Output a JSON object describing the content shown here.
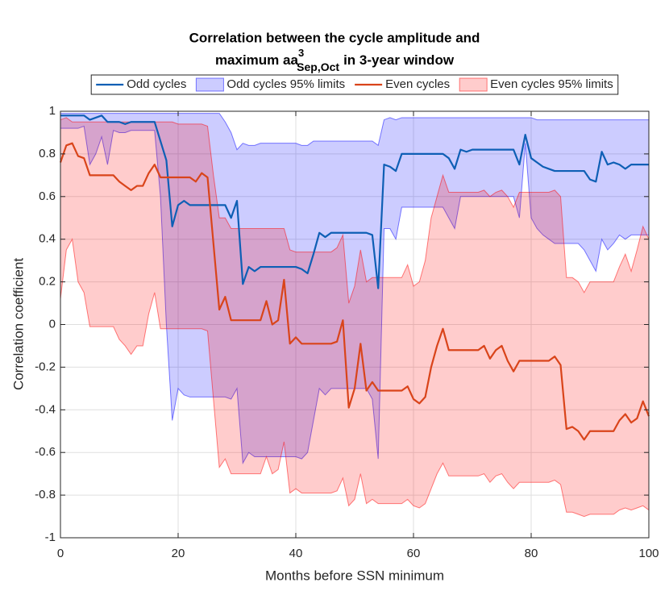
{
  "chart_data": {
    "type": "line",
    "title": [
      "Correlation between the cycle amplitude and",
      "maximum aa",
      "3",
      "Sep,Oct",
      "in 3-year window"
    ],
    "xlabel": "Months before SSN minimum",
    "ylabel": "Correlation coefficient",
    "xlim": [
      0,
      100
    ],
    "ylim": [
      -1,
      1
    ],
    "xticks": [
      0,
      20,
      40,
      60,
      80,
      100
    ],
    "yticks": [
      -1,
      -0.8,
      -0.6,
      -0.4,
      -0.2,
      0,
      0.2,
      0.4,
      0.6,
      0.8,
      1
    ],
    "grid": true,
    "legend": "north",
    "x": [
      0,
      1,
      2,
      3,
      4,
      5,
      6,
      7,
      8,
      9,
      10,
      11,
      12,
      13,
      14,
      15,
      16,
      17,
      18,
      19,
      20,
      21,
      22,
      23,
      24,
      25,
      26,
      27,
      28,
      29,
      30,
      31,
      32,
      33,
      34,
      35,
      36,
      37,
      38,
      39,
      40,
      41,
      42,
      43,
      44,
      45,
      46,
      47,
      48,
      49,
      50,
      51,
      52,
      53,
      54,
      55,
      56,
      57,
      58,
      59,
      60,
      61,
      62,
      63,
      64,
      65,
      66,
      67,
      68,
      69,
      70,
      71,
      72,
      73,
      74,
      75,
      76,
      77,
      78,
      79,
      80,
      81,
      82,
      83,
      84,
      85,
      86,
      87,
      88,
      89,
      90,
      91,
      92,
      93,
      94,
      95,
      96,
      97,
      98,
      99,
      100
    ],
    "series": [
      {
        "name": "Odd cycles",
        "color": "#0e5fb5",
        "values": [
          0.98,
          0.98,
          0.98,
          0.98,
          0.98,
          0.96,
          0.97,
          0.98,
          0.95,
          0.95,
          0.95,
          0.94,
          0.95,
          0.95,
          0.95,
          0.95,
          0.95,
          0.86,
          0.77,
          0.46,
          0.56,
          0.58,
          0.56,
          0.56,
          0.56,
          0.56,
          0.56,
          0.56,
          0.56,
          0.5,
          0.58,
          0.19,
          0.27,
          0.25,
          0.27,
          0.27,
          0.27,
          0.27,
          0.27,
          0.27,
          0.27,
          0.26,
          0.24,
          0.33,
          0.43,
          0.41,
          0.43,
          0.43,
          0.43,
          0.43,
          0.43,
          0.43,
          0.43,
          0.42,
          0.17,
          0.75,
          0.74,
          0.72,
          0.8,
          0.8,
          0.8,
          0.8,
          0.8,
          0.8,
          0.8,
          0.8,
          0.78,
          0.73,
          0.82,
          0.81,
          0.82,
          0.82,
          0.82,
          0.82,
          0.82,
          0.82,
          0.82,
          0.82,
          0.75,
          0.89,
          0.78,
          0.76,
          0.74,
          0.73,
          0.72,
          0.72,
          0.72,
          0.72,
          0.72,
          0.72,
          0.68,
          0.67,
          0.81,
          0.75,
          0.76,
          0.75,
          0.73,
          0.75,
          0.75,
          0.75,
          0.75
        ]
      },
      {
        "name": "Odd cycles 95% limits",
        "color": "#0000ff",
        "upper": [
          0.99,
          0.99,
          0.99,
          0.99,
          0.99,
          0.99,
          0.99,
          0.99,
          0.99,
          0.99,
          0.99,
          0.99,
          0.99,
          0.99,
          0.99,
          0.99,
          0.99,
          0.99,
          0.99,
          0.99,
          0.99,
          0.99,
          0.99,
          0.99,
          0.99,
          0.99,
          0.99,
          0.99,
          0.95,
          0.9,
          0.82,
          0.85,
          0.84,
          0.84,
          0.85,
          0.85,
          0.85,
          0.85,
          0.85,
          0.85,
          0.85,
          0.84,
          0.84,
          0.86,
          0.86,
          0.86,
          0.86,
          0.86,
          0.86,
          0.86,
          0.86,
          0.86,
          0.86,
          0.86,
          0.84,
          0.96,
          0.97,
          0.96,
          0.97,
          0.97,
          0.97,
          0.97,
          0.97,
          0.97,
          0.97,
          0.97,
          0.97,
          0.97,
          0.97,
          0.97,
          0.97,
          0.97,
          0.97,
          0.97,
          0.97,
          0.97,
          0.97,
          0.97,
          0.97,
          0.97,
          0.97,
          0.96,
          0.96,
          0.96,
          0.96,
          0.96,
          0.96,
          0.96,
          0.96,
          0.96,
          0.96,
          0.96,
          0.96,
          0.96,
          0.96,
          0.96,
          0.96,
          0.96,
          0.96,
          0.96,
          0.96
        ],
        "lower": [
          0.92,
          0.92,
          0.92,
          0.92,
          0.93,
          0.75,
          0.8,
          0.88,
          0.75,
          0.91,
          0.9,
          0.9,
          0.91,
          0.91,
          0.91,
          0.91,
          0.91,
          0.6,
          0.0,
          -0.45,
          -0.3,
          -0.33,
          -0.34,
          -0.34,
          -0.34,
          -0.34,
          -0.34,
          -0.34,
          -0.34,
          -0.35,
          -0.3,
          -0.65,
          -0.6,
          -0.62,
          -0.62,
          -0.62,
          -0.62,
          -0.62,
          -0.62,
          -0.62,
          -0.62,
          -0.63,
          -0.6,
          -0.45,
          -0.3,
          -0.33,
          -0.3,
          -0.3,
          -0.3,
          -0.3,
          -0.3,
          -0.3,
          -0.3,
          -0.35,
          -0.63,
          0.45,
          0.45,
          0.4,
          0.55,
          0.55,
          0.55,
          0.55,
          0.55,
          0.55,
          0.55,
          0.55,
          0.5,
          0.45,
          0.6,
          0.6,
          0.6,
          0.6,
          0.6,
          0.6,
          0.6,
          0.6,
          0.6,
          0.6,
          0.5,
          0.85,
          0.5,
          0.45,
          0.42,
          0.4,
          0.38,
          0.38,
          0.38,
          0.38,
          0.38,
          0.35,
          0.3,
          0.25,
          0.4,
          0.35,
          0.38,
          0.42,
          0.4,
          0.42,
          0.42,
          0.42,
          0.42
        ]
      },
      {
        "name": "Even cycles",
        "color": "#d9441a",
        "values": [
          0.76,
          0.84,
          0.85,
          0.79,
          0.78,
          0.7,
          0.7,
          0.7,
          0.7,
          0.7,
          0.67,
          0.65,
          0.63,
          0.65,
          0.65,
          0.71,
          0.75,
          0.69,
          0.69,
          0.69,
          0.69,
          0.69,
          0.69,
          0.67,
          0.71,
          0.69,
          0.38,
          0.07,
          0.13,
          0.02,
          0.02,
          0.02,
          0.02,
          0.02,
          0.02,
          0.11,
          0.0,
          0.02,
          0.21,
          -0.09,
          -0.06,
          -0.09,
          -0.09,
          -0.09,
          -0.09,
          -0.09,
          -0.09,
          -0.08,
          0.02,
          -0.39,
          -0.3,
          -0.09,
          -0.31,
          -0.27,
          -0.31,
          -0.31,
          -0.31,
          -0.31,
          -0.31,
          -0.29,
          -0.35,
          -0.37,
          -0.34,
          -0.2,
          -0.1,
          -0.02,
          -0.12,
          -0.12,
          -0.12,
          -0.12,
          -0.12,
          -0.12,
          -0.1,
          -0.16,
          -0.12,
          -0.1,
          -0.17,
          -0.22,
          -0.17,
          -0.17,
          -0.17,
          -0.17,
          -0.17,
          -0.17,
          -0.15,
          -0.19,
          -0.49,
          -0.48,
          -0.5,
          -0.54,
          -0.5,
          -0.5,
          -0.5,
          -0.5,
          -0.5,
          -0.45,
          -0.42,
          -0.46,
          -0.44,
          -0.36,
          -0.43
        ]
      },
      {
        "name": "Even cycles 95% limits",
        "color": "#ff0000",
        "upper": [
          0.96,
          0.97,
          0.95,
          0.95,
          0.95,
          0.95,
          0.95,
          0.95,
          0.95,
          0.95,
          0.95,
          0.95,
          0.95,
          0.95,
          0.95,
          0.95,
          0.95,
          0.95,
          0.95,
          0.95,
          0.94,
          0.94,
          0.94,
          0.94,
          0.94,
          0.93,
          0.7,
          0.5,
          0.5,
          0.45,
          0.45,
          0.45,
          0.45,
          0.45,
          0.45,
          0.45,
          0.45,
          0.45,
          0.45,
          0.35,
          0.34,
          0.34,
          0.34,
          0.34,
          0.34,
          0.34,
          0.34,
          0.36,
          0.42,
          0.1,
          0.18,
          0.35,
          0.2,
          0.22,
          0.22,
          0.22,
          0.22,
          0.22,
          0.22,
          0.28,
          0.18,
          0.2,
          0.3,
          0.5,
          0.6,
          0.7,
          0.62,
          0.62,
          0.62,
          0.62,
          0.62,
          0.62,
          0.63,
          0.6,
          0.62,
          0.63,
          0.6,
          0.55,
          0.62,
          0.62,
          0.62,
          0.62,
          0.62,
          0.62,
          0.63,
          0.6,
          0.22,
          0.22,
          0.2,
          0.15,
          0.2,
          0.2,
          0.2,
          0.2,
          0.2,
          0.27,
          0.33,
          0.25,
          0.35,
          0.46,
          0.4
        ],
        "lower": [
          0.12,
          0.35,
          0.4,
          0.2,
          0.15,
          -0.01,
          -0.01,
          -0.01,
          -0.01,
          -0.01,
          -0.07,
          -0.1,
          -0.14,
          -0.1,
          -0.1,
          0.05,
          0.15,
          -0.02,
          -0.02,
          -0.02,
          -0.02,
          -0.02,
          -0.02,
          -0.02,
          -0.02,
          -0.03,
          -0.35,
          -0.67,
          -0.63,
          -0.7,
          -0.7,
          -0.7,
          -0.7,
          -0.7,
          -0.7,
          -0.62,
          -0.7,
          -0.68,
          -0.55,
          -0.79,
          -0.77,
          -0.79,
          -0.79,
          -0.79,
          -0.79,
          -0.79,
          -0.79,
          -0.78,
          -0.72,
          -0.85,
          -0.82,
          -0.7,
          -0.84,
          -0.82,
          -0.84,
          -0.84,
          -0.84,
          -0.84,
          -0.84,
          -0.82,
          -0.85,
          -0.86,
          -0.84,
          -0.77,
          -0.7,
          -0.65,
          -0.71,
          -0.71,
          -0.71,
          -0.71,
          -0.71,
          -0.71,
          -0.7,
          -0.74,
          -0.71,
          -0.7,
          -0.74,
          -0.77,
          -0.74,
          -0.74,
          -0.74,
          -0.74,
          -0.74,
          -0.74,
          -0.73,
          -0.75,
          -0.88,
          -0.88,
          -0.89,
          -0.9,
          -0.89,
          -0.89,
          -0.89,
          -0.89,
          -0.89,
          -0.87,
          -0.86,
          -0.87,
          -0.86,
          -0.85,
          -0.87
        ]
      }
    ]
  }
}
